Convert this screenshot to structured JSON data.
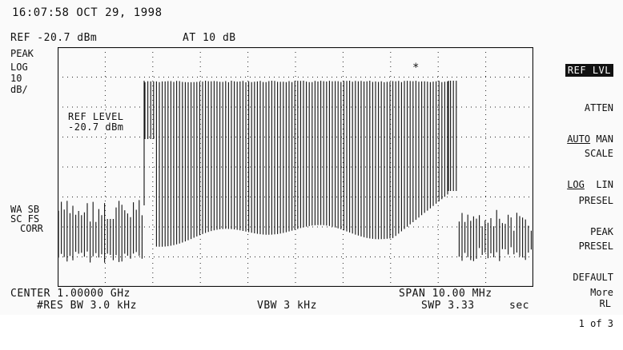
{
  "header": {
    "datetime": "16:07:58 OCT 29, 1998",
    "ref": "REF -20.7 dBm",
    "atten": "AT 10 dB"
  },
  "left_labels": {
    "mode": "PEAK",
    "scale": "LOG",
    "per_div": "10",
    "unit": "dB/",
    "wa": "WA SB",
    "sc": "SC FS",
    "corr": "CORR"
  },
  "annotation": {
    "ref_level_title": "REF LEVEL",
    "ref_level_value": "-20.7 dBm",
    "marker": "*"
  },
  "footer": {
    "center": "CENTER 1.00000 GHz",
    "span": "SPAN 10.00 MHz",
    "res_bw": "#RES BW 3.0 kHz",
    "vbw": "VBW 3 kHz",
    "swp": "SWP 3.33",
    "swp_unit": "sec"
  },
  "softkeys": {
    "ref_lvl": "REF LVL",
    "atten_title": "ATTEN",
    "atten_auto": "AUTO",
    "atten_man": " MAN",
    "scale_title": "SCALE",
    "scale_log": "LOG",
    "scale_lin": "  LIN",
    "presel_peak_1": "PRESEL",
    "presel_peak_2": "PEAK",
    "presel_def_1": "PRESEL",
    "presel_def_2": "DEFAULT",
    "more_1": "More",
    "more_2": "1 of 3",
    "rl": "RL"
  },
  "colors": {
    "trace": "#111111",
    "grid": "#222222",
    "background": "#fafafa"
  }
}
